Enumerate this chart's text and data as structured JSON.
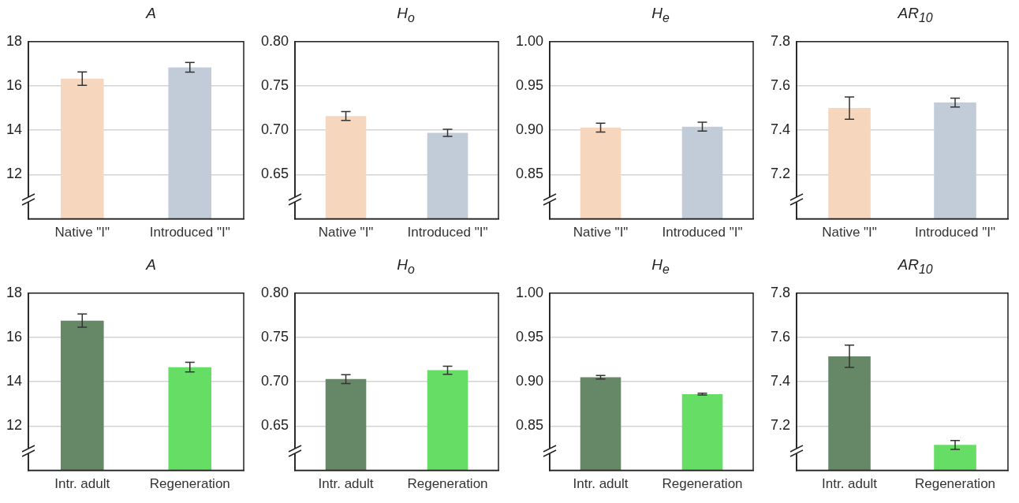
{
  "chart_data": [
    {
      "type": "bar",
      "title": "A",
      "categories": [
        "Native \"I\"",
        "Introduced \"I\""
      ],
      "values": [
        16.33,
        16.84
      ],
      "errors": [
        0.3,
        0.22
      ],
      "colors": [
        "#f7d6be",
        "#c2ccd8"
      ],
      "ylim": [
        10,
        18
      ],
      "yticks": [
        12,
        14,
        16,
        18
      ],
      "grid": "y"
    },
    {
      "type": "bar",
      "title": "H$_{o}$",
      "categories": [
        "Native \"I\"",
        "Introduced \"I\""
      ],
      "values": [
        0.716,
        0.697
      ],
      "errors": [
        0.005,
        0.004
      ],
      "colors": [
        "#f7d6be",
        "#c2ccd8"
      ],
      "ylim": [
        0.6,
        0.8
      ],
      "yticks": [
        {
          "value": 0.65,
          "label": "0.65"
        },
        {
          "value": 0.7,
          "label": "0.70"
        },
        {
          "value": 0.75,
          "label": "0.75"
        },
        {
          "value": 0.8,
          "label": "0.80"
        }
      ],
      "grid": "y"
    },
    {
      "type": "bar",
      "title": "H$_{e}$",
      "categories": [
        "Native \"I\"",
        "Introduced \"I\""
      ],
      "values": [
        0.903,
        0.904
      ],
      "errors": [
        0.005,
        0.005
      ],
      "colors": [
        "#f7d6be",
        "#c2ccd8"
      ],
      "ylim": [
        0.8,
        1.0
      ],
      "yticks": [
        {
          "value": 0.85,
          "label": "0.85"
        },
        {
          "value": 0.9,
          "label": "0.90"
        },
        {
          "value": 0.95,
          "label": "0.95"
        },
        {
          "value": 1.0,
          "label": "1.00"
        }
      ],
      "grid": "y"
    },
    {
      "type": "bar",
      "title": "AR$_{10}$",
      "categories": [
        "Native \"I\"",
        "Introduced \"I\""
      ],
      "values": [
        7.5,
        7.525
      ],
      "errors": [
        0.05,
        0.02
      ],
      "colors": [
        "#f7d6be",
        "#c2ccd8"
      ],
      "ylim": [
        7.0,
        7.8
      ],
      "yticks": [
        7.2,
        7.4,
        7.6,
        7.8
      ],
      "grid": "y"
    },
    {
      "type": "bar",
      "title": "A",
      "categories": [
        "Intr. adult",
        "Regeneration"
      ],
      "values": [
        16.76,
        14.66
      ],
      "errors": [
        0.3,
        0.22
      ],
      "colors": [
        "#668866",
        "#66de66"
      ],
      "ylim": [
        10,
        18
      ],
      "yticks": [
        12,
        14,
        16,
        18
      ],
      "grid": "y"
    },
    {
      "type": "bar",
      "title": "H$_{o}$",
      "categories": [
        "Intr. adult",
        "Regeneration"
      ],
      "values": [
        0.703,
        0.713
      ],
      "errors": [
        0.005,
        0.0045
      ],
      "colors": [
        "#668866",
        "#66de66"
      ],
      "ylim": [
        0.6,
        0.8
      ],
      "yticks": [
        {
          "value": 0.65,
          "label": "0.65"
        },
        {
          "value": 0.7,
          "label": "0.70"
        },
        {
          "value": 0.75,
          "label": "0.75"
        },
        {
          "value": 0.8,
          "label": "0.80"
        }
      ],
      "grid": "y"
    },
    {
      "type": "bar",
      "title": "H$_{e}$",
      "categories": [
        "Intr. adult",
        "Regeneration"
      ],
      "values": [
        0.905,
        0.886
      ],
      "errors": [
        0.002,
        0.001
      ],
      "colors": [
        "#668866",
        "#66de66"
      ],
      "ylim": [
        0.8,
        1.0
      ],
      "yticks": [
        {
          "value": 0.85,
          "label": "0.85"
        },
        {
          "value": 0.9,
          "label": "0.90"
        },
        {
          "value": 0.95,
          "label": "0.95"
        },
        {
          "value": 1.0,
          "label": "1.00"
        }
      ],
      "grid": "y"
    },
    {
      "type": "bar",
      "title": "AR$_{10}$",
      "categories": [
        "Intr. adult",
        "Regeneration"
      ],
      "values": [
        7.515,
        7.115
      ],
      "errors": [
        0.05,
        0.02
      ],
      "colors": [
        "#668866",
        "#66de66"
      ],
      "ylim": [
        7.0,
        7.8
      ],
      "yticks": [
        7.2,
        7.4,
        7.6,
        7.8
      ],
      "grid": "y"
    }
  ]
}
